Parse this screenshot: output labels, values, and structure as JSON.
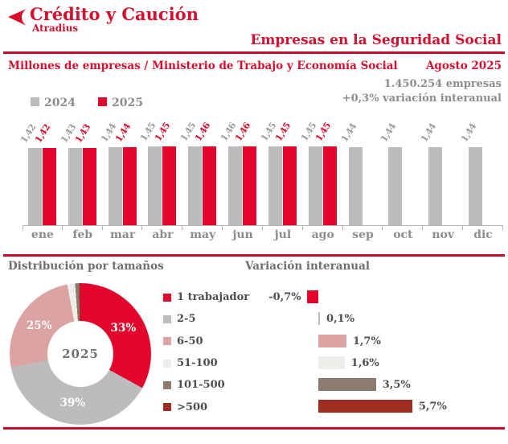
{
  "brand": {
    "name": "Crédito y Caución",
    "sub": "Atradius"
  },
  "header": {
    "title": "Empresas en la Seguridad Social"
  },
  "subheader": {
    "left": "Millones de empresas / Ministerio de Trabajo y Economía Social",
    "right": "Agosto 2025"
  },
  "stats": {
    "line1": "1.450.254 empresas",
    "line2": "+0,3% variación interanual"
  },
  "colors": {
    "accent_red": "#d50f2e",
    "rule_red": "#c70b2d",
    "bar_gray": "#bcbcbc",
    "bar_red": "#e2062c",
    "pink": "#dba3a1",
    "cream": "#efedea",
    "brown": "#8d7b70",
    "dark_red": "#9e2d22",
    "text_gray": "#8c8c8c"
  },
  "chart_data": [
    {
      "type": "bar",
      "title": "Empresas en la Seguridad Social (millones)",
      "categories": [
        "ene",
        "feb",
        "mar",
        "abr",
        "may",
        "jun",
        "jul",
        "ago",
        "sep",
        "oct",
        "nov",
        "dic"
      ],
      "series": [
        {
          "name": "2024",
          "color": "#bcbcbc",
          "label_color": "#9a9a9a",
          "values": [
            1.42,
            1.43,
            1.44,
            1.45,
            1.45,
            1.46,
            1.45,
            1.45,
            1.44,
            1.44,
            1.44,
            1.44
          ],
          "labels": [
            "1,42",
            "1,43",
            "1,44",
            "1,45",
            "1,45",
            "1,46",
            "1,45",
            "1,45",
            "1,44",
            "1,44",
            "1,44",
            "1,44"
          ]
        },
        {
          "name": "2025",
          "color": "#e2062c",
          "label_color": "#d50f2e",
          "values": [
            1.42,
            1.43,
            1.44,
            1.45,
            1.46,
            1.46,
            1.45,
            1.45,
            null,
            null,
            null,
            null
          ],
          "labels": [
            "1,42",
            "1,43",
            "1,44",
            "1,45",
            "1,46",
            "1,46",
            "1,45",
            "1,45",
            null,
            null,
            null,
            null
          ]
        }
      ],
      "ylim": [
        0,
        1.5
      ],
      "grid": false,
      "legend_position": "top-left",
      "value_labels_rotated": true
    },
    {
      "type": "pie",
      "title": "Distribución por tamaños",
      "center_label": "2025",
      "slices": [
        {
          "label": "1 trabajador",
          "value": 33,
          "display": "33%",
          "color": "#e2062c"
        },
        {
          "label": "2-5",
          "value": 39,
          "display": "39%",
          "color": "#bcbcbc"
        },
        {
          "label": "6-50",
          "value": 25,
          "display": "25%",
          "color": "#dba3a1"
        },
        {
          "label": "51-100",
          "value": 1.8,
          "display": "",
          "color": "#efedea"
        },
        {
          "label": "101-500",
          "value": 0.9,
          "display": "",
          "color": "#8d7b70"
        },
        {
          "label": ">500",
          "value": 0.3,
          "display": "",
          "color": "#9e2d22"
        }
      ]
    },
    {
      "type": "bar",
      "orientation": "horizontal",
      "title": "Variación interanual",
      "categories": [
        "1 trabajador",
        "2-5",
        "6-50",
        "51-100",
        "101-500",
        ">500"
      ],
      "values": [
        -0.7,
        0.1,
        1.7,
        1.6,
        3.5,
        5.7
      ],
      "labels": [
        "-0,7%",
        "0,1%",
        "1,7%",
        "1,6%",
        "3,5%",
        "5,7%"
      ],
      "colors": [
        "#e2062c",
        "#bcbcbc",
        "#dba3a1",
        "#efedea",
        "#8d7b70",
        "#9e2d22"
      ],
      "xlim": [
        -1,
        6
      ]
    }
  ]
}
